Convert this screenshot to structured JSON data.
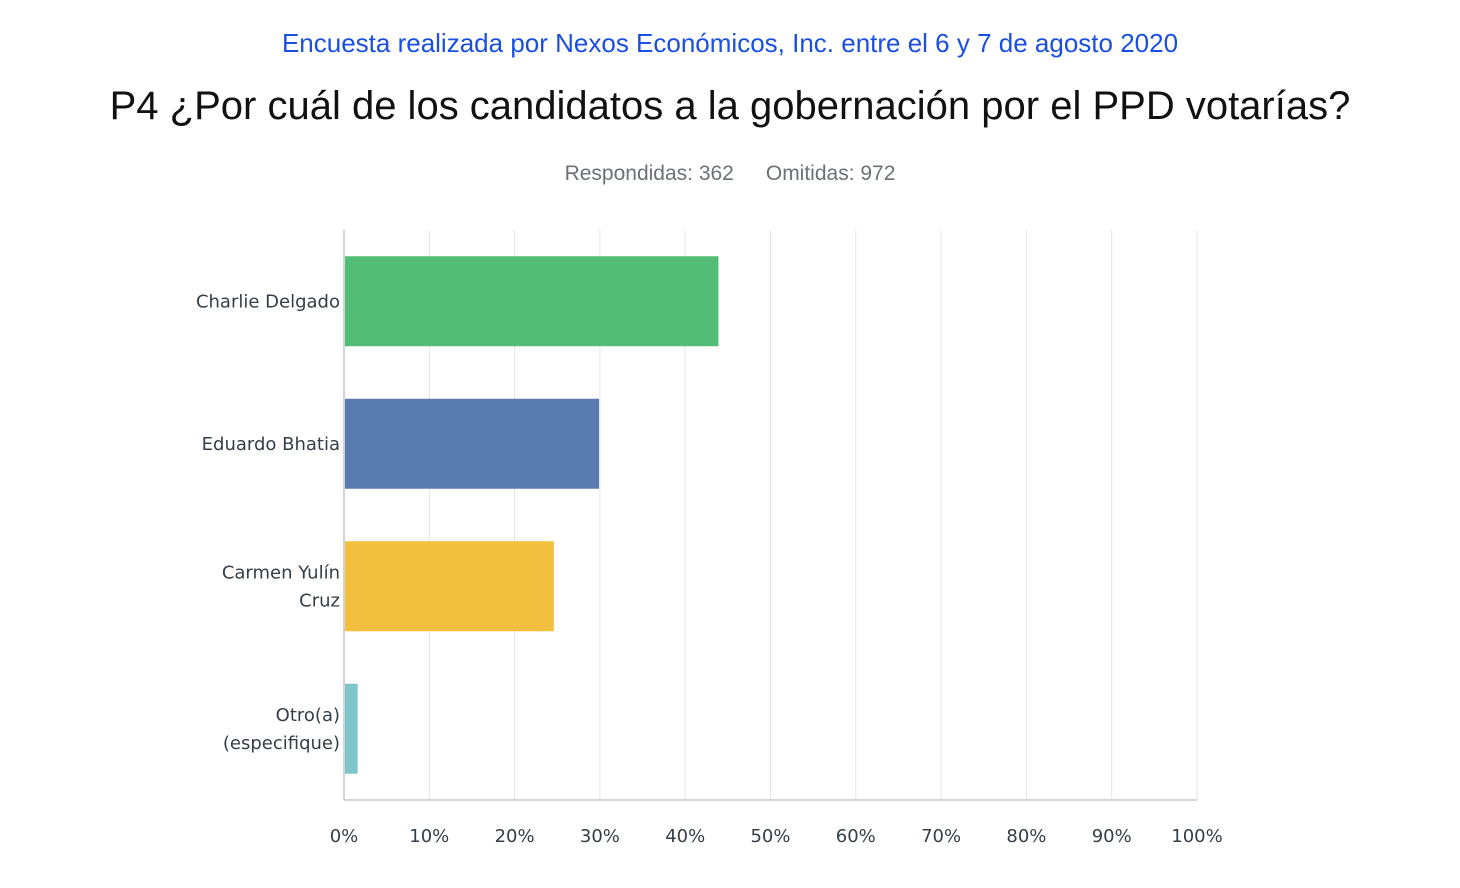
{
  "header": {
    "source": "Encuesta realizada por Nexos Económicos, Inc. entre el 6 y 7 de agosto 2020",
    "title": "P4 ¿Por cuál de los candidatos a la gobernación por el PPD votarías?",
    "answered": "Respondidas: 362",
    "skipped": "Omitidas: 972"
  },
  "chart_data": {
    "type": "bar",
    "orientation": "horizontal",
    "categories": [
      [
        "Charlie Delgado"
      ],
      [
        "Eduardo Bhatia"
      ],
      [
        "Carmen Yulín",
        "Cruz"
      ],
      [
        "Otro(a)",
        "(especifique)"
      ]
    ],
    "values": [
      43.9,
      29.9,
      24.6,
      1.6
    ],
    "colors": [
      "#53bd76",
      "#5a7bb0",
      "#f2bf3f",
      "#7ec6c9"
    ],
    "x_ticks": [
      "0%",
      "10%",
      "20%",
      "30%",
      "40%",
      "50%",
      "60%",
      "70%",
      "80%",
      "90%",
      "100%"
    ],
    "xlim": [
      0,
      100
    ],
    "grid": true
  }
}
